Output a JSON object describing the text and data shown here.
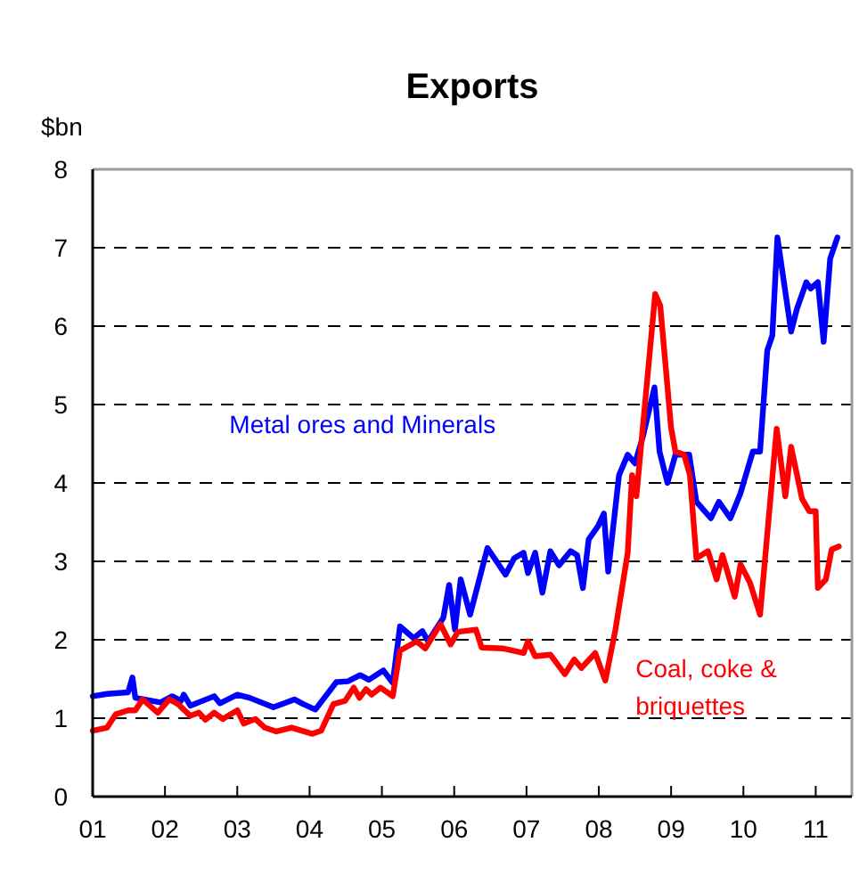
{
  "chart_data": {
    "type": "line",
    "title": "Exports",
    "ylabel": "$bn",
    "xlim": [
      2001,
      2011.5
    ],
    "ylim": [
      0,
      8
    ],
    "xticks": [
      {
        "value": 2001,
        "label": "01"
      },
      {
        "value": 2002,
        "label": "02"
      },
      {
        "value": 2003,
        "label": "03"
      },
      {
        "value": 2004,
        "label": "04"
      },
      {
        "value": 2005,
        "label": "05"
      },
      {
        "value": 2006,
        "label": "06"
      },
      {
        "value": 2007,
        "label": "07"
      },
      {
        "value": 2008,
        "label": "08"
      },
      {
        "value": 2009,
        "label": "09"
      },
      {
        "value": 2010,
        "label": "10"
      },
      {
        "value": 2011,
        "label": "11"
      }
    ],
    "yticks": [
      0,
      1,
      2,
      3,
      4,
      5,
      6,
      7,
      8
    ],
    "grid": "y",
    "line_style": "solid",
    "marker": "none",
    "series": [
      {
        "name": "Metal ores and Minerals",
        "color": "#0000ff",
        "x": [
          2001.0,
          2001.2,
          2001.49,
          2001.55,
          2001.59,
          2001.94,
          2002.1,
          2002.22,
          2002.26,
          2002.35,
          2002.68,
          2002.76,
          2003.0,
          2003.17,
          2003.5,
          2003.79,
          2003.91,
          2004.08,
          2004.37,
          2004.53,
          2004.7,
          2004.82,
          2005.02,
          2005.15,
          2005.25,
          2005.44,
          2005.56,
          2005.64,
          2005.85,
          2005.93,
          2006.01,
          2006.09,
          2006.22,
          2006.46,
          2006.71,
          2006.83,
          2006.96,
          2007.02,
          2007.12,
          2007.22,
          2007.33,
          2007.45,
          2007.61,
          2007.7,
          2007.78,
          2007.86,
          2007.99,
          2008.07,
          2008.13,
          2008.28,
          2008.4,
          2008.5,
          2008.61,
          2008.77,
          2008.84,
          2008.95,
          2009.06,
          2009.25,
          2009.35,
          2009.55,
          2009.66,
          2009.82,
          2009.96,
          2010.13,
          2010.23,
          2010.33,
          2010.4,
          2010.47,
          2010.66,
          2010.74,
          2010.87,
          2010.93,
          2011.03,
          2011.11,
          2011.2,
          2011.3
        ],
        "values": [
          1.28,
          1.31,
          1.33,
          1.52,
          1.26,
          1.2,
          1.28,
          1.22,
          1.3,
          1.16,
          1.28,
          1.19,
          1.3,
          1.26,
          1.14,
          1.24,
          1.18,
          1.11,
          1.46,
          1.47,
          1.55,
          1.49,
          1.61,
          1.45,
          2.17,
          2.02,
          2.11,
          1.98,
          2.28,
          2.7,
          2.13,
          2.77,
          2.32,
          3.17,
          2.83,
          3.04,
          3.11,
          2.85,
          3.11,
          2.6,
          3.13,
          2.95,
          3.13,
          3.08,
          2.66,
          3.28,
          3.45,
          3.61,
          2.87,
          4.1,
          4.36,
          4.25,
          4.59,
          5.22,
          4.4,
          4.0,
          4.36,
          4.36,
          3.76,
          3.55,
          3.76,
          3.55,
          3.87,
          4.4,
          4.4,
          5.69,
          5.88,
          7.13,
          5.93,
          6.22,
          6.56,
          6.48,
          6.56,
          5.8,
          6.86,
          7.13
        ]
      },
      {
        "name": "Coal, coke & briquettes",
        "color": "#ff0000",
        "x": [
          2001.0,
          2001.2,
          2001.32,
          2001.49,
          2001.59,
          2001.69,
          2001.9,
          2002.06,
          2002.18,
          2002.35,
          2002.47,
          2002.56,
          2002.68,
          2002.8,
          2003.0,
          2003.09,
          2003.25,
          2003.38,
          2003.54,
          2003.75,
          2004.04,
          2004.16,
          2004.33,
          2004.49,
          2004.61,
          2004.69,
          2004.78,
          2004.86,
          2004.98,
          2005.15,
          2005.25,
          2005.48,
          2005.6,
          2005.81,
          2005.95,
          2006.05,
          2006.3,
          2006.38,
          2006.67,
          2006.96,
          2007.02,
          2007.12,
          2007.33,
          2007.53,
          2007.66,
          2007.76,
          2007.95,
          2008.09,
          2008.23,
          2008.4,
          2008.46,
          2008.52,
          2008.78,
          2008.85,
          2009.0,
          2009.06,
          2009.18,
          2009.26,
          2009.35,
          2009.51,
          2009.63,
          2009.71,
          2009.88,
          2009.96,
          2010.09,
          2010.23,
          2010.46,
          2010.58,
          2010.66,
          2010.81,
          2010.91,
          2011.0,
          2011.03,
          2011.14,
          2011.22,
          2011.32
        ],
        "values": [
          0.84,
          0.88,
          1.05,
          1.1,
          1.1,
          1.24,
          1.07,
          1.24,
          1.18,
          1.03,
          1.07,
          0.98,
          1.07,
          0.99,
          1.1,
          0.93,
          0.99,
          0.88,
          0.83,
          0.88,
          0.8,
          0.84,
          1.18,
          1.22,
          1.39,
          1.26,
          1.37,
          1.3,
          1.39,
          1.28,
          1.86,
          1.98,
          1.89,
          2.2,
          1.94,
          2.1,
          2.13,
          1.9,
          1.89,
          1.83,
          1.98,
          1.79,
          1.81,
          1.56,
          1.75,
          1.64,
          1.83,
          1.48,
          2.13,
          3.11,
          4.1,
          3.83,
          6.41,
          6.26,
          4.7,
          4.4,
          4.36,
          4.1,
          3.04,
          3.13,
          2.77,
          3.08,
          2.55,
          2.96,
          2.73,
          2.32,
          4.69,
          3.83,
          4.46,
          3.8,
          3.64,
          3.64,
          2.66,
          2.77,
          3.15,
          3.19
        ]
      }
    ]
  }
}
